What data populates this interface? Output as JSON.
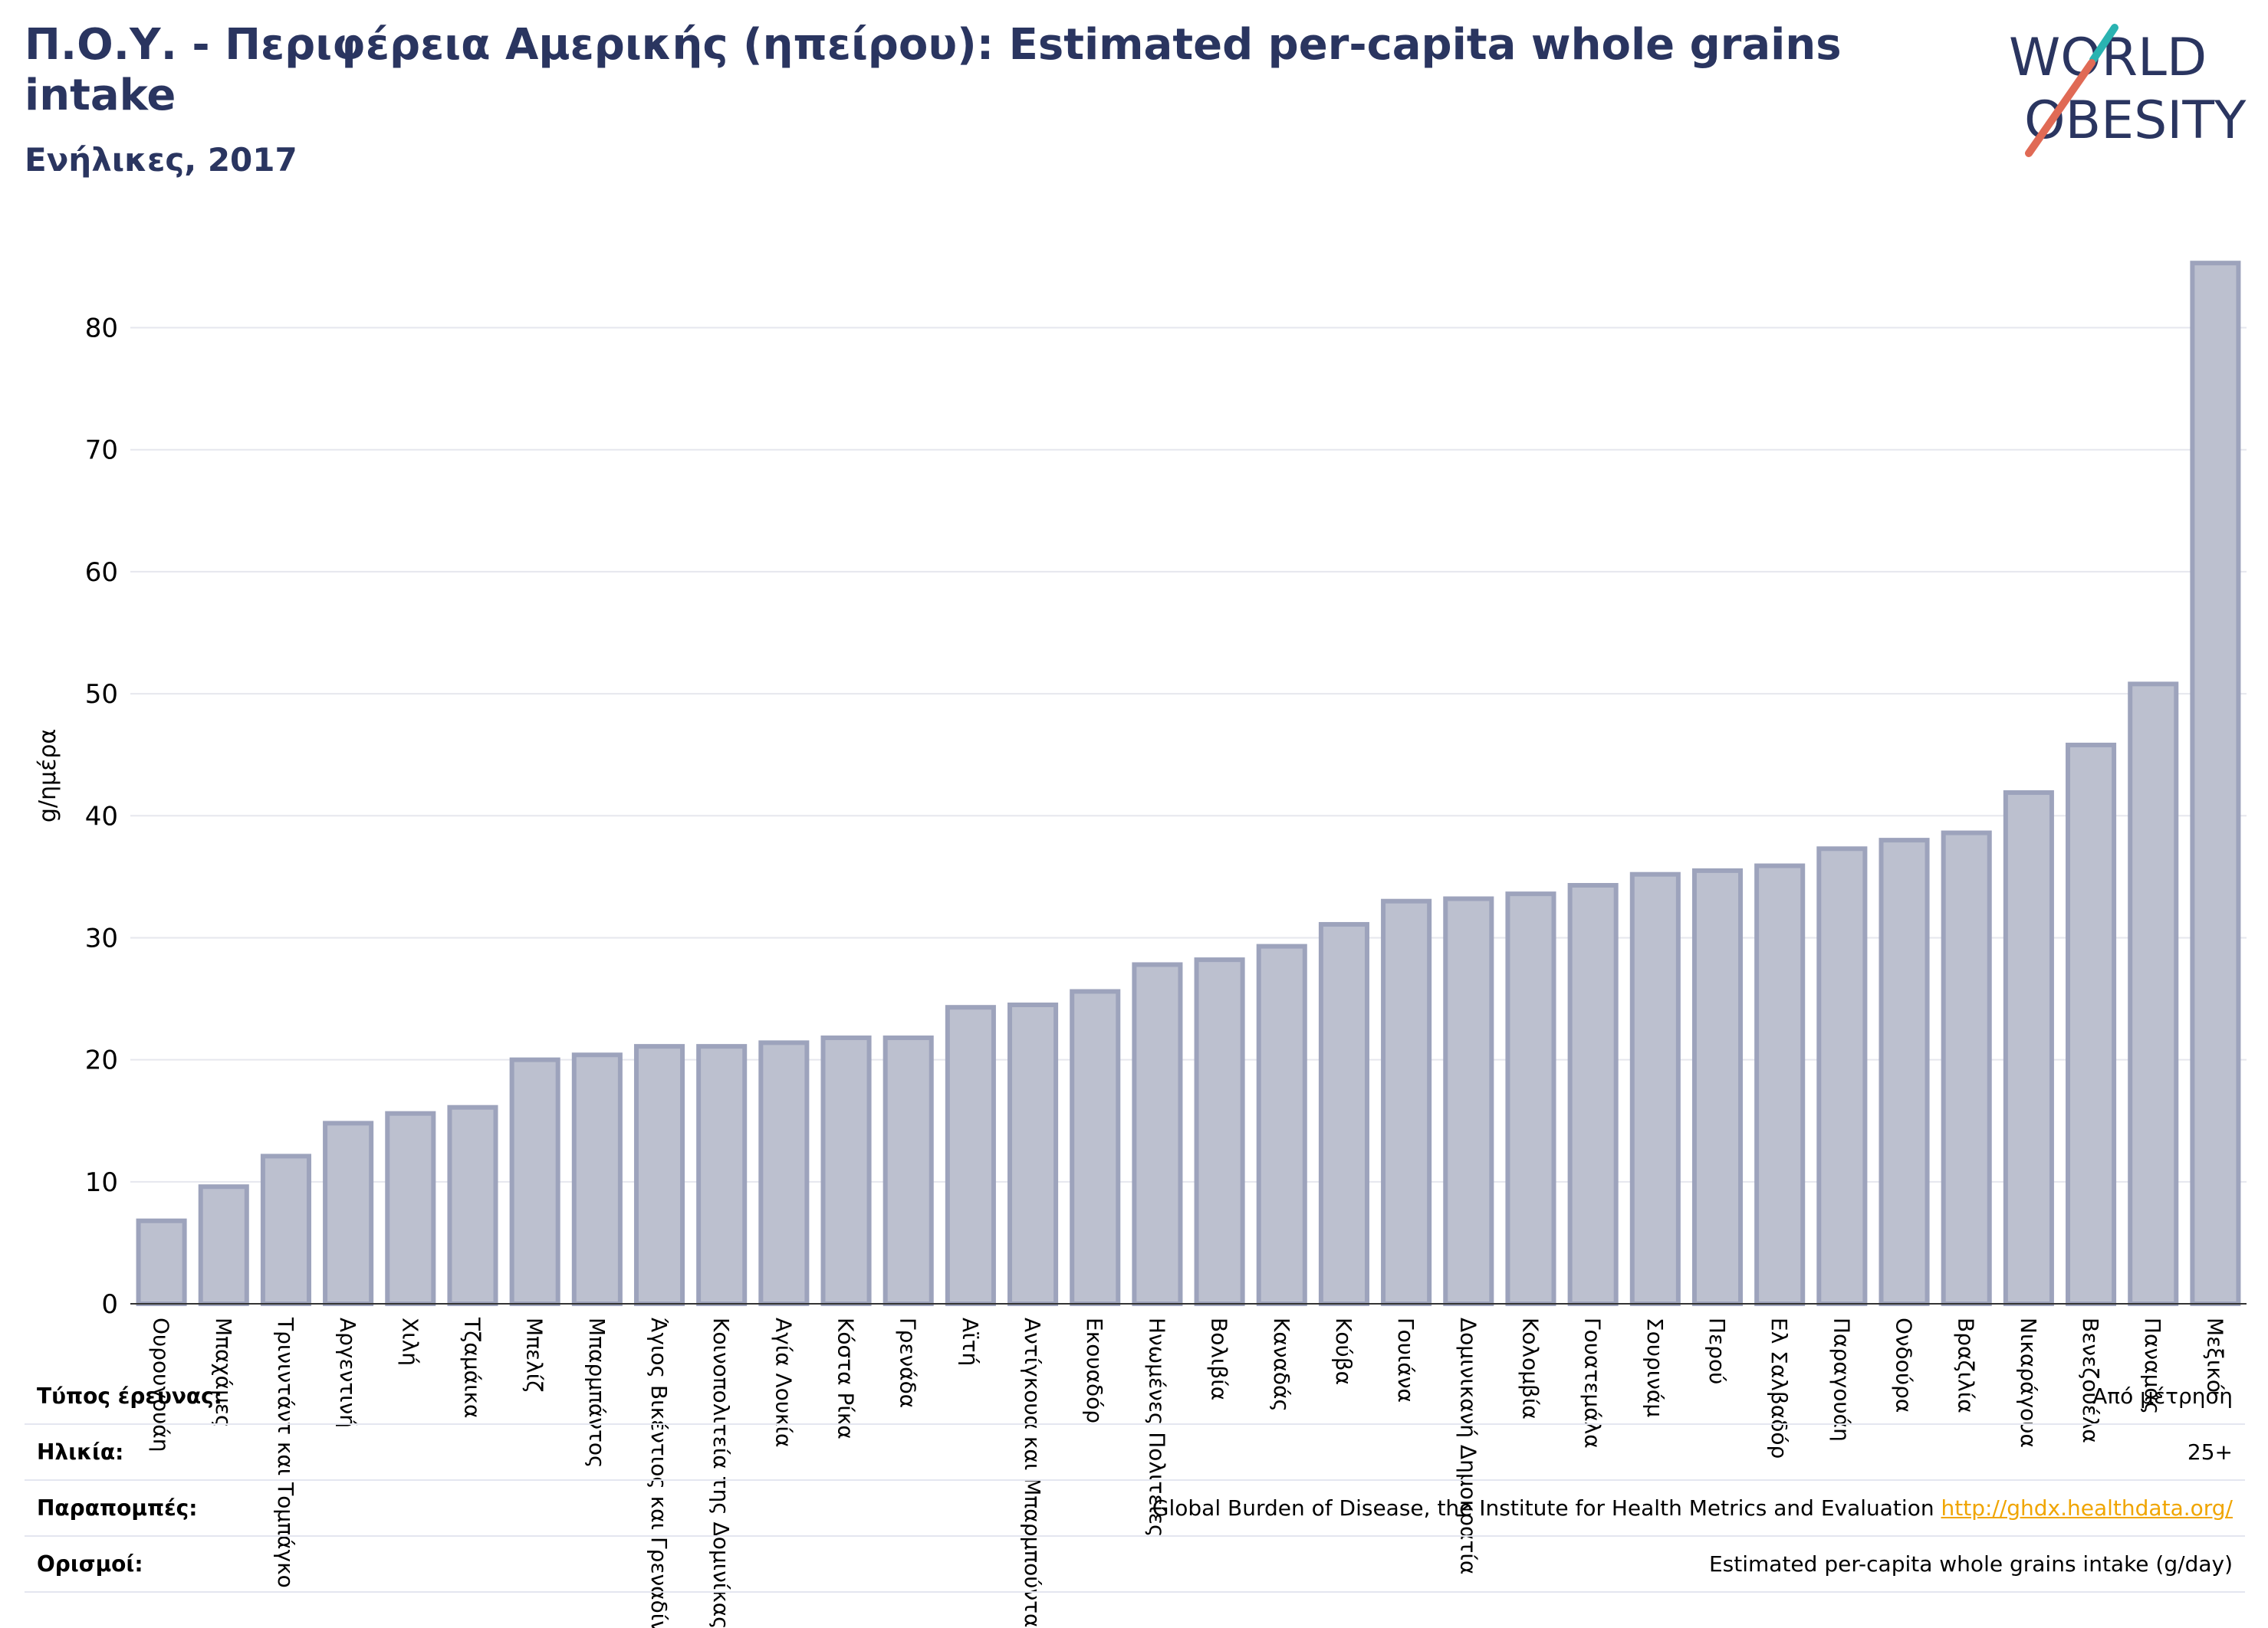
{
  "header": {
    "title": "Π.Ο.Υ. - Περιφέρεια Αμερικής (ηπείρου): Estimated per-capita whole grains intake",
    "subtitle": "Ενήλικες, 2017"
  },
  "logo": {
    "line1": "WORLD",
    "line2": "OBESITY"
  },
  "colors": {
    "title": "#2a3560",
    "bar_fill": "#bcc0cf",
    "bar_stroke": "#9da3bc",
    "link": "#f0a500",
    "logo_text": "#2a3560",
    "logo_slash_teal": "#2ab3b1",
    "logo_slash_red": "#e06a55"
  },
  "chart_data": {
    "type": "bar",
    "title": "",
    "xlabel": "",
    "ylabel": "g/ημέρα",
    "ylim": [
      0,
      85.5
    ],
    "yticks": [
      0,
      10,
      20,
      30,
      40,
      50,
      60,
      70,
      80
    ],
    "grid": true,
    "categories": [
      "Ουρουγουάη",
      "Μπαχάμες",
      "Τρινιντάντ και Τομπάγκο",
      "Αργεντινή",
      "Χιλή",
      "Τζαμάικα",
      "Μπελίζ",
      "Μπαρμπάντος",
      "Άγιος Βικέντιος και Γρεναδίνες",
      "Κοινοπολιτεία της Δομινίκας",
      "Αγία Λουκία",
      "Κόστα Ρίκα",
      "Γρενάδα",
      "Αϊτή",
      "Αντίγκουα και Μπαρμπούντα",
      "Εκουαδόρ",
      "Ηνωμένες Πολιτείες",
      "Βολιβία",
      "Καναδάς",
      "Κούβα",
      "Γουιάνα",
      "Δομινικανή Δημοκρατία",
      "Κολομβία",
      "Γουατεμάλα",
      "Σουρινάμ",
      "Περού",
      "Ελ Σαλβαδόρ",
      "Παραγουάη",
      "Ονδούρα",
      "Βραζιλία",
      "Νικαράγουα",
      "Βενεζουέλα",
      "Παναμάς",
      "Μεξικό"
    ],
    "values": [
      6.8,
      9.6,
      12.1,
      14.8,
      15.6,
      16.1,
      20.0,
      20.4,
      21.1,
      21.1,
      21.4,
      21.8,
      21.8,
      24.3,
      24.5,
      25.6,
      27.8,
      28.2,
      29.3,
      31.1,
      33.0,
      33.2,
      33.6,
      34.3,
      35.2,
      35.5,
      35.9,
      37.3,
      38.0,
      38.6,
      41.9,
      45.8,
      50.8,
      85.3
    ]
  },
  "footer": {
    "rows": [
      {
        "label": "Τύπος έρευνας:",
        "value": "Από μέτρηση"
      },
      {
        "label": "Ηλικία:",
        "value": "25+"
      },
      {
        "label": "Παραπομπές:",
        "value": "Global Burden of Disease, the Institute for Health Metrics and Evaluation",
        "link": "http://ghdx.healthdata.org/"
      },
      {
        "label": "Ορισμοί:",
        "value": "Estimated per-capita whole grains intake (g/day)"
      }
    ]
  }
}
